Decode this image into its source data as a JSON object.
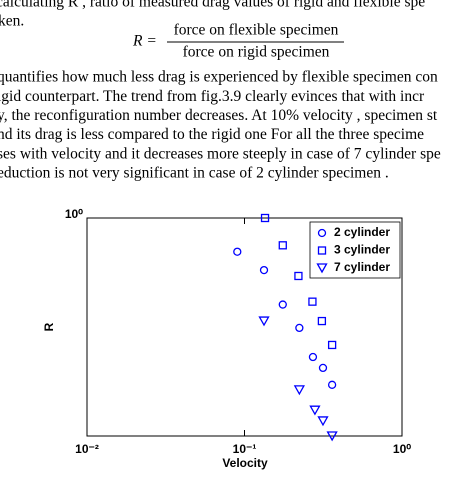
{
  "text": {
    "line1": "calculating R , ratio of measured drag values of rigid and flexible spe",
    "line2": "ken."
  },
  "equation": {
    "lhs": "R =",
    "numerator": "force on flexible specimen",
    "denominator": "force on rigid specimen"
  },
  "paragraph": [
    "quantifies how much less drag is experienced by flexible specimen con",
    "igid counterpart. The trend from fig.3.9 clearly evinces that with incr",
    "y, the reconfiguration number decreases. At 10% velocity , specimen st",
    "nd its drag is less compared to the rigid one For all the three specime",
    "ses with velocity and it decreases more steeply in case of 7 cylinder spe",
    "eduction is not very significant in case of 2 cylinder specimen ."
  ],
  "chart_data": {
    "type": "scatter",
    "x_label": "Velocity",
    "y_label": "R",
    "xscale": "log",
    "yscale": "log",
    "xlim": [
      0.01,
      1
    ],
    "ylim": [
      0.3,
      1
    ],
    "xticks": [
      {
        "value": 0.01,
        "label": "10⁻²"
      },
      {
        "value": 0.1,
        "label": "10⁻¹"
      },
      {
        "value": 1,
        "label": "10⁰"
      }
    ],
    "yticks": [
      {
        "value": 1,
        "label": "10⁰"
      }
    ],
    "legend": "upper right",
    "series": [
      {
        "name": "2 cylinder",
        "color": "#0000ff",
        "marker": "circle",
        "x": [
          0.09,
          0.133,
          0.175,
          0.223,
          0.272,
          0.315,
          0.36
        ],
        "values": [
          0.83,
          0.75,
          0.62,
          0.545,
          0.464,
          0.437,
          0.398
        ]
      },
      {
        "name": "3 cylinder",
        "color": "#0000ff",
        "marker": "square",
        "x": [
          0.135,
          0.175,
          0.22,
          0.27,
          0.31,
          0.36
        ],
        "values": [
          1.0,
          0.86,
          0.726,
          0.63,
          0.566,
          0.496
        ]
      },
      {
        "name": "7 cylinder",
        "color": "#0000ff",
        "marker": "triangle-down",
        "x": [
          0.133,
          0.223,
          0.28,
          0.315,
          0.36
        ],
        "values": [
          0.566,
          0.387,
          0.346,
          0.326,
          0.3
        ]
      }
    ]
  }
}
